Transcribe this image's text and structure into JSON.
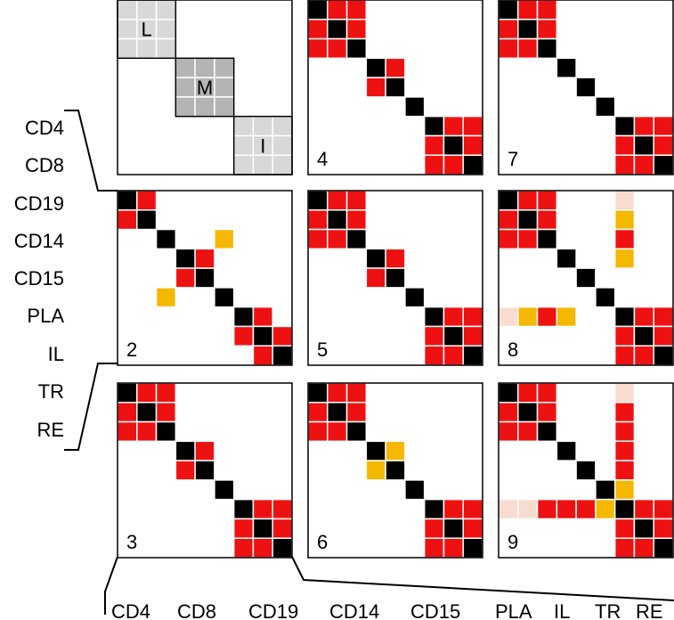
{
  "labels": {
    "rows": [
      "CD4",
      "CD8",
      "CD19",
      "CD14",
      "CD15",
      "PLA",
      "IL",
      "TR",
      "RE"
    ],
    "cols": [
      "CD4",
      "CD8",
      "CD19",
      "CD14",
      "CD15",
      "PLA",
      "IL",
      "TR",
      "RE"
    ]
  },
  "colors": {
    "black": "#000000",
    "red": "#ee1111",
    "yellow": "#f5b800",
    "pale": "#f8dcd0",
    "light_gray": "#d8d8d8",
    "mid_gray": "#b4b4b4"
  },
  "first_panel": {
    "blocks": [
      {
        "letter": "L",
        "shade": "light_gray",
        "start": 0,
        "size": 3
      },
      {
        "letter": "M",
        "shade": "mid_gray",
        "start": 3,
        "size": 3
      },
      {
        "letter": "I",
        "shade": "light_gray",
        "start": 6,
        "size": 3
      }
    ]
  },
  "panels": [
    {
      "number": "2",
      "row": 1,
      "col": 0,
      "cells": [
        [
          0,
          0,
          "black"
        ],
        [
          0,
          1,
          "red"
        ],
        [
          1,
          0,
          "red"
        ],
        [
          1,
          1,
          "black"
        ],
        [
          2,
          2,
          "black"
        ],
        [
          2,
          5,
          "yellow"
        ],
        [
          3,
          3,
          "black"
        ],
        [
          3,
          4,
          "red"
        ],
        [
          4,
          3,
          "red"
        ],
        [
          4,
          4,
          "black"
        ],
        [
          5,
          2,
          "yellow"
        ],
        [
          5,
          5,
          "black"
        ],
        [
          6,
          6,
          "black"
        ],
        [
          6,
          7,
          "red"
        ],
        [
          7,
          6,
          "red"
        ],
        [
          7,
          7,
          "black"
        ],
        [
          7,
          8,
          "red"
        ],
        [
          8,
          7,
          "red"
        ],
        [
          8,
          8,
          "black"
        ]
      ]
    },
    {
      "number": "3",
      "row": 2,
      "col": 0,
      "cells": [
        [
          0,
          0,
          "black"
        ],
        [
          0,
          1,
          "red"
        ],
        [
          0,
          2,
          "red"
        ],
        [
          1,
          0,
          "red"
        ],
        [
          1,
          1,
          "black"
        ],
        [
          1,
          2,
          "red"
        ],
        [
          2,
          0,
          "red"
        ],
        [
          2,
          1,
          "red"
        ],
        [
          2,
          2,
          "black"
        ],
        [
          3,
          3,
          "black"
        ],
        [
          3,
          4,
          "red"
        ],
        [
          4,
          3,
          "red"
        ],
        [
          4,
          4,
          "black"
        ],
        [
          5,
          5,
          "black"
        ],
        [
          6,
          6,
          "black"
        ],
        [
          6,
          7,
          "red"
        ],
        [
          6,
          8,
          "red"
        ],
        [
          7,
          6,
          "red"
        ],
        [
          7,
          7,
          "black"
        ],
        [
          7,
          8,
          "red"
        ],
        [
          8,
          6,
          "red"
        ],
        [
          8,
          7,
          "red"
        ],
        [
          8,
          8,
          "black"
        ]
      ]
    },
    {
      "number": "4",
      "row": 0,
      "col": 1,
      "cells": [
        [
          0,
          0,
          "black"
        ],
        [
          0,
          1,
          "red"
        ],
        [
          0,
          2,
          "red"
        ],
        [
          1,
          0,
          "red"
        ],
        [
          1,
          1,
          "black"
        ],
        [
          1,
          2,
          "red"
        ],
        [
          2,
          0,
          "red"
        ],
        [
          2,
          1,
          "red"
        ],
        [
          2,
          2,
          "black"
        ],
        [
          3,
          3,
          "black"
        ],
        [
          3,
          4,
          "red"
        ],
        [
          4,
          3,
          "red"
        ],
        [
          4,
          4,
          "black"
        ],
        [
          5,
          5,
          "black"
        ],
        [
          6,
          6,
          "black"
        ],
        [
          6,
          7,
          "red"
        ],
        [
          6,
          8,
          "red"
        ],
        [
          7,
          6,
          "red"
        ],
        [
          7,
          7,
          "black"
        ],
        [
          7,
          8,
          "red"
        ],
        [
          8,
          6,
          "red"
        ],
        [
          8,
          7,
          "red"
        ],
        [
          8,
          8,
          "black"
        ]
      ]
    },
    {
      "number": "5",
      "row": 1,
      "col": 1,
      "cells": [
        [
          0,
          0,
          "black"
        ],
        [
          0,
          1,
          "red"
        ],
        [
          0,
          2,
          "red"
        ],
        [
          1,
          0,
          "red"
        ],
        [
          1,
          1,
          "black"
        ],
        [
          1,
          2,
          "red"
        ],
        [
          2,
          0,
          "red"
        ],
        [
          2,
          1,
          "red"
        ],
        [
          2,
          2,
          "black"
        ],
        [
          3,
          3,
          "black"
        ],
        [
          3,
          4,
          "red"
        ],
        [
          4,
          3,
          "red"
        ],
        [
          4,
          4,
          "black"
        ],
        [
          5,
          5,
          "black"
        ],
        [
          6,
          6,
          "black"
        ],
        [
          6,
          7,
          "red"
        ],
        [
          6,
          8,
          "red"
        ],
        [
          7,
          6,
          "red"
        ],
        [
          7,
          7,
          "black"
        ],
        [
          7,
          8,
          "red"
        ],
        [
          8,
          6,
          "red"
        ],
        [
          8,
          7,
          "red"
        ],
        [
          8,
          8,
          "black"
        ]
      ]
    },
    {
      "number": "6",
      "row": 2,
      "col": 1,
      "cells": [
        [
          0,
          0,
          "black"
        ],
        [
          0,
          1,
          "red"
        ],
        [
          0,
          2,
          "red"
        ],
        [
          1,
          0,
          "red"
        ],
        [
          1,
          1,
          "black"
        ],
        [
          1,
          2,
          "red"
        ],
        [
          2,
          0,
          "red"
        ],
        [
          2,
          1,
          "red"
        ],
        [
          2,
          2,
          "black"
        ],
        [
          3,
          3,
          "black"
        ],
        [
          3,
          4,
          "yellow"
        ],
        [
          4,
          3,
          "yellow"
        ],
        [
          4,
          4,
          "black"
        ],
        [
          5,
          5,
          "black"
        ],
        [
          6,
          6,
          "black"
        ],
        [
          6,
          7,
          "red"
        ],
        [
          6,
          8,
          "red"
        ],
        [
          7,
          6,
          "red"
        ],
        [
          7,
          7,
          "black"
        ],
        [
          7,
          8,
          "red"
        ],
        [
          8,
          6,
          "red"
        ],
        [
          8,
          7,
          "red"
        ],
        [
          8,
          8,
          "black"
        ]
      ]
    },
    {
      "number": "7",
      "row": 0,
      "col": 2,
      "cells": [
        [
          0,
          0,
          "black"
        ],
        [
          0,
          1,
          "red"
        ],
        [
          0,
          2,
          "red"
        ],
        [
          1,
          0,
          "red"
        ],
        [
          1,
          1,
          "black"
        ],
        [
          1,
          2,
          "red"
        ],
        [
          2,
          0,
          "red"
        ],
        [
          2,
          1,
          "red"
        ],
        [
          2,
          2,
          "black"
        ],
        [
          3,
          3,
          "black"
        ],
        [
          4,
          4,
          "black"
        ],
        [
          5,
          5,
          "black"
        ],
        [
          6,
          6,
          "black"
        ],
        [
          6,
          7,
          "red"
        ],
        [
          6,
          8,
          "red"
        ],
        [
          7,
          6,
          "red"
        ],
        [
          7,
          7,
          "black"
        ],
        [
          7,
          8,
          "red"
        ],
        [
          8,
          6,
          "red"
        ],
        [
          8,
          7,
          "red"
        ],
        [
          8,
          8,
          "black"
        ]
      ]
    },
    {
      "number": "8",
      "row": 1,
      "col": 2,
      "cells": [
        [
          0,
          0,
          "black"
        ],
        [
          0,
          1,
          "red"
        ],
        [
          0,
          2,
          "red"
        ],
        [
          1,
          0,
          "red"
        ],
        [
          1,
          1,
          "black"
        ],
        [
          1,
          2,
          "red"
        ],
        [
          2,
          0,
          "red"
        ],
        [
          2,
          1,
          "red"
        ],
        [
          2,
          2,
          "black"
        ],
        [
          0,
          6,
          "pale"
        ],
        [
          1,
          6,
          "yellow"
        ],
        [
          2,
          6,
          "red"
        ],
        [
          3,
          6,
          "yellow"
        ],
        [
          3,
          3,
          "black"
        ],
        [
          4,
          4,
          "black"
        ],
        [
          5,
          5,
          "black"
        ],
        [
          6,
          0,
          "pale"
        ],
        [
          6,
          1,
          "yellow"
        ],
        [
          6,
          2,
          "red"
        ],
        [
          6,
          3,
          "yellow"
        ],
        [
          6,
          6,
          "black"
        ],
        [
          6,
          7,
          "red"
        ],
        [
          6,
          8,
          "red"
        ],
        [
          7,
          6,
          "red"
        ],
        [
          7,
          7,
          "black"
        ],
        [
          7,
          8,
          "red"
        ],
        [
          8,
          6,
          "red"
        ],
        [
          8,
          7,
          "red"
        ],
        [
          8,
          8,
          "black"
        ]
      ]
    },
    {
      "number": "9",
      "row": 2,
      "col": 2,
      "cells": [
        [
          0,
          0,
          "black"
        ],
        [
          0,
          1,
          "red"
        ],
        [
          0,
          2,
          "red"
        ],
        [
          1,
          0,
          "red"
        ],
        [
          1,
          1,
          "black"
        ],
        [
          1,
          2,
          "red"
        ],
        [
          2,
          0,
          "red"
        ],
        [
          2,
          1,
          "red"
        ],
        [
          2,
          2,
          "black"
        ],
        [
          0,
          6,
          "pale"
        ],
        [
          1,
          6,
          "red"
        ],
        [
          2,
          6,
          "red"
        ],
        [
          3,
          6,
          "red"
        ],
        [
          4,
          6,
          "red"
        ],
        [
          5,
          6,
          "yellow"
        ],
        [
          3,
          3,
          "black"
        ],
        [
          4,
          4,
          "black"
        ],
        [
          5,
          5,
          "black"
        ],
        [
          6,
          0,
          "pale"
        ],
        [
          6,
          1,
          "pale"
        ],
        [
          6,
          2,
          "red"
        ],
        [
          6,
          3,
          "red"
        ],
        [
          6,
          4,
          "red"
        ],
        [
          6,
          5,
          "yellow"
        ],
        [
          6,
          6,
          "black"
        ],
        [
          6,
          7,
          "red"
        ],
        [
          6,
          8,
          "red"
        ],
        [
          7,
          6,
          "red"
        ],
        [
          7,
          7,
          "black"
        ],
        [
          7,
          8,
          "red"
        ],
        [
          8,
          6,
          "red"
        ],
        [
          8,
          7,
          "red"
        ],
        [
          8,
          8,
          "black"
        ]
      ]
    }
  ]
}
